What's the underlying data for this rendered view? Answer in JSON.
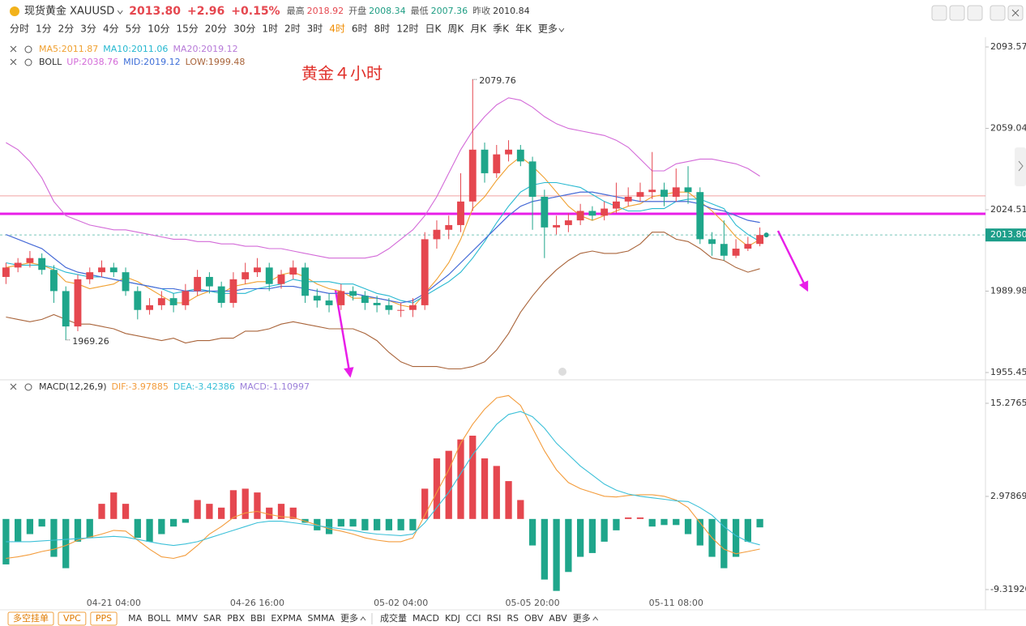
{
  "header": {
    "symbol": "现货黄金 XAUUSD",
    "price": "2013.80",
    "change": "+2.96",
    "change_pct": "+0.15%",
    "stats": [
      {
        "label": "最高",
        "value": "2018.92",
        "color": "#e5474f"
      },
      {
        "label": "开盘",
        "value": "2008.34",
        "color": "#1f9e84"
      },
      {
        "label": "最低",
        "value": "2007.36",
        "color": "#1f9e84"
      },
      {
        "label": "昨收",
        "value": "2010.84",
        "color": "#333333"
      }
    ]
  },
  "timeframes": {
    "items": [
      "分时",
      "1分",
      "2分",
      "3分",
      "4分",
      "5分",
      "10分",
      "15分",
      "20分",
      "30分",
      "1时",
      "2时",
      "3时",
      "4时",
      "6时",
      "8时",
      "12时",
      "日K",
      "周K",
      "月K",
      "季K",
      "年K",
      "更多"
    ],
    "active": "4时"
  },
  "toolbar": {
    "buttons": [
      "多空挂单",
      "VPC",
      "PPS"
    ],
    "main_indicators": [
      "MA",
      "BOLL",
      "MMV",
      "SAR",
      "PBX",
      "BBI",
      "EXPMA",
      "SMMA",
      "更多"
    ],
    "sub_indicators": [
      "成交量",
      "MACD",
      "KDJ",
      "CCI",
      "RSI",
      "RS",
      "OBV",
      "ABV",
      "更多"
    ]
  },
  "chart_data": [
    {
      "type": "candlestick",
      "annotation": "黄金４小时",
      "boll_label": "BOLL",
      "categories": [
        null,
        null,
        null,
        null,
        null,
        null,
        null,
        null,
        null,
        "04-21 04:00",
        null,
        null,
        null,
        null,
        null,
        null,
        null,
        null,
        null,
        null,
        null,
        "04-26 16:00",
        null,
        null,
        null,
        null,
        null,
        null,
        null,
        null,
        null,
        null,
        null,
        "05-02 04:00",
        null,
        null,
        null,
        null,
        null,
        null,
        null,
        null,
        null,
        null,
        "05-05 20:00",
        null,
        null,
        null,
        null,
        null,
        null,
        null,
        null,
        null,
        null,
        null,
        "05-11 08:00",
        null,
        null,
        null,
        null,
        null,
        null,
        null
      ],
      "open": [
        1996,
        2000,
        2002,
        2004,
        1999,
        1990,
        1975,
        1995,
        1998,
        2000,
        1998,
        1990,
        1982,
        1984,
        1987,
        1984,
        1990,
        1996,
        1992,
        1985,
        1995,
        1998,
        2000,
        1993,
        1997,
        2000,
        1988,
        1986,
        1984,
        1990,
        1988,
        1985,
        1984,
        1982,
        1982,
        1984,
        2012,
        2016,
        2018,
        2028,
        2050,
        2040,
        2048,
        2050,
        2045,
        2030,
        2017,
        2018,
        2020,
        2024,
        2022,
        2025,
        2028,
        2030,
        2032,
        2033,
        2030,
        2034,
        2032,
        2012,
        2010,
        2005,
        2008,
        2010
      ],
      "high": [
        2002,
        2004,
        2007,
        2006,
        2001,
        1992,
        1997,
        2000,
        2003,
        2002,
        2000,
        1992,
        1987,
        1990,
        1989,
        1993,
        1999,
        1998,
        1994,
        1998,
        2002,
        2004,
        2002,
        1999,
        2003,
        2002,
        1991,
        1989,
        1993,
        1992,
        1990,
        1988,
        1987,
        1985,
        1987,
        2015,
        2020,
        2022,
        2040,
        2079.76,
        2053,
        2052,
        2054,
        2052,
        2047,
        2033,
        2022,
        2023,
        2027,
        2026,
        2028,
        2036,
        2034,
        2036,
        2049,
        2036,
        2042,
        2043,
        2034,
        2015,
        2020,
        2012,
        2013,
        2017
      ],
      "low": [
        1993,
        1998,
        2000,
        1997,
        1985,
        1969.26,
        1973,
        1993,
        1996,
        1996,
        1988,
        1978,
        1980,
        1982,
        1981,
        1982,
        1988,
        1989,
        1983,
        1983,
        1993,
        1996,
        1990,
        1991,
        1995,
        1985,
        1983,
        1981,
        1982,
        1986,
        1982,
        1981,
        1980,
        1979,
        1979,
        1982,
        2008,
        2012,
        2015,
        2024,
        2036,
        2038,
        2045,
        2043,
        2016,
        2004,
        2014,
        2015,
        2018,
        2020,
        2020,
        2023,
        2026,
        2028,
        2029,
        2026,
        2028,
        2027,
        2010,
        2005,
        2003,
        2004,
        2007,
        2009
      ],
      "close": [
        2000,
        2002,
        2004,
        1999,
        1990,
        1975,
        1995,
        1998,
        2000,
        1998,
        1990,
        1982,
        1984,
        1987,
        1984,
        1990,
        1996,
        1992,
        1985,
        1995,
        1998,
        2000,
        1993,
        1997,
        2000,
        1988,
        1986,
        1984,
        1990,
        1988,
        1985,
        1984,
        1982,
        1982,
        1984,
        2012,
        2016,
        2018,
        2028,
        2050,
        2040,
        2048,
        2050,
        2045,
        2030,
        2017,
        2018,
        2020,
        2024,
        2022,
        2025,
        2028,
        2030,
        2032,
        2033,
        2030,
        2034,
        2032,
        2012,
        2010,
        2005,
        2008,
        2010,
        2013.8
      ],
      "up_color": "#e5474f",
      "down_color": "#1fa68b",
      "series": [
        {
          "name": "MA5:2011.87",
          "legend_row": 1,
          "color": "#f0a030",
          "values": [
            2000,
            2001,
            2002,
            2001,
            1999,
            1994,
            1993,
            1991,
            1992,
            1993,
            1996,
            1994,
            1991,
            1988,
            1985,
            1985,
            1988,
            1990,
            1989,
            1992,
            1993,
            1994,
            1994,
            1997,
            1998,
            1996,
            1993,
            1991,
            1990,
            1987,
            1987,
            1987,
            1986,
            1984,
            1983,
            1989,
            1995,
            2002,
            2012,
            2025,
            2030,
            2037,
            2043,
            2047,
            2043,
            2038,
            2032,
            2026,
            2022,
            2020,
            2022,
            2024,
            2026,
            2027,
            2030,
            2031,
            2032,
            2032,
            2028,
            2024,
            2019,
            2013,
            2009,
            2011.87
          ]
        },
        {
          "name": "MA10:2011.06",
          "legend_row": 1,
          "color": "#26b8d0",
          "values": [
            2002,
            2001,
            2001,
            2001,
            2000,
            1998,
            1997,
            1996,
            1996,
            1995,
            1994,
            1993,
            1992,
            1991,
            1989,
            1990,
            1991,
            1990,
            1989,
            1989,
            1989,
            1991,
            1992,
            1993,
            1995,
            1994,
            1994,
            1994,
            1993,
            1993,
            1991,
            1989,
            1988,
            1986,
            1985,
            1988,
            1991,
            1994,
            1998,
            2004,
            2011,
            2019,
            2026,
            2032,
            2035,
            2036,
            2036,
            2035,
            2034,
            2031,
            2028,
            2026,
            2024,
            2024,
            2025,
            2025,
            2028,
            2029,
            2029,
            2027,
            2025,
            2018,
            2014,
            2011.06
          ]
        },
        {
          "name": "MA20:2019.12",
          "legend_row": 1,
          "color": "#b77ad8",
          "values": [
            2014,
            2012,
            2010,
            2008,
            2004,
            2000,
            1998,
            1997,
            1996,
            1995,
            1994,
            1993,
            1992,
            1991,
            1991,
            1990,
            1990,
            1990,
            1990,
            1990,
            1991,
            1991,
            1991,
            1992,
            1992,
            1991,
            1990,
            1989,
            1989,
            1989,
            1988,
            1987,
            1986,
            1985,
            1986,
            1989,
            1993,
            1997,
            2002,
            2007,
            2012,
            2017,
            2022,
            2026,
            2028,
            2029,
            2030,
            2031,
            2032,
            2032,
            2031,
            2030,
            2029,
            2028,
            2028,
            2028,
            2028,
            2028,
            2027,
            2025,
            2024,
            2022,
            2020,
            2019.12
          ]
        },
        {
          "name": "UP:2038.76",
          "legend_row": 2,
          "color": "#d36ad8",
          "values": [
            2053,
            2050,
            2045,
            2038,
            2028,
            2022,
            2020,
            2018,
            2017,
            2016,
            2016,
            2015,
            2014,
            2013,
            2012,
            2012,
            2011,
            2011,
            2010,
            2010,
            2009,
            2009,
            2008,
            2008,
            2007,
            2006,
            2005,
            2004,
            2004,
            2004,
            2004,
            2005,
            2008,
            2012,
            2016,
            2022,
            2030,
            2040,
            2050,
            2058,
            2064,
            2069,
            2072,
            2071,
            2068,
            2064,
            2061,
            2059,
            2058,
            2057,
            2056,
            2054,
            2051,
            2046,
            2041,
            2041,
            2044,
            2045,
            2046,
            2046,
            2045,
            2044,
            2042,
            2038.76
          ]
        },
        {
          "name": "MID:2019.12",
          "legend_row": 2,
          "color": "#3f6fd8",
          "values": [
            2014,
            2012,
            2010,
            2008,
            2004,
            2000,
            1998,
            1997,
            1996,
            1995,
            1994,
            1993,
            1992,
            1991,
            1991,
            1990,
            1990,
            1990,
            1990,
            1990,
            1991,
            1991,
            1991,
            1992,
            1992,
            1991,
            1990,
            1989,
            1989,
            1989,
            1988,
            1987,
            1986,
            1985,
            1986,
            1989,
            1993,
            1997,
            2002,
            2007,
            2012,
            2017,
            2022,
            2026,
            2028,
            2029,
            2030,
            2031,
            2032,
            2032,
            2031,
            2030,
            2029,
            2028,
            2028,
            2028,
            2028,
            2028,
            2027,
            2025,
            2024,
            2022,
            2020,
            2019.12
          ]
        },
        {
          "name": "LOW:1999.48",
          "legend_row": 2,
          "color": "#a9643a",
          "values": [
            1979,
            1978,
            1977,
            1978,
            1980,
            1978,
            1976,
            1976,
            1975,
            1974,
            1972,
            1971,
            1970,
            1969,
            1970,
            1968,
            1969,
            1969,
            1970,
            1970,
            1973,
            1973,
            1974,
            1976,
            1977,
            1976,
            1975,
            1974,
            1974,
            1974,
            1972,
            1969,
            1964,
            1960,
            1958,
            1958,
            1958,
            1957,
            1957,
            1958,
            1960,
            1965,
            1972,
            1981,
            1988,
            1994,
            1999,
            2003,
            2006,
            2007,
            2006,
            2006,
            2007,
            2010,
            2015,
            2015,
            2012,
            2011,
            2008,
            2004,
            2003,
            2000,
            1998,
            1999.48
          ]
        }
      ],
      "ylim": [
        1952.7,
        2097.0
      ],
      "yticks": [
        2093.57,
        2059.04,
        2024.51,
        1989.98,
        1955.45
      ],
      "last_price": {
        "value": 2013.8,
        "label": "2013.80"
      },
      "last_price_color": "#1d9e8a",
      "levels": [
        {
          "value": 2022.8,
          "color": "#e81ee8",
          "line_width": 3
        },
        {
          "value": 2030.4,
          "color": "#f0a0a0",
          "line_width": 1
        }
      ]
    },
    {
      "type": "combo",
      "title": "MACD(12,26,9)",
      "ylim": [
        -11.14,
        17.2
      ],
      "yticks": [
        15.27659,
        2.97869,
        {
          "value": -9.3192,
          "label": "-9.31920"
        }
      ],
      "series": [
        {
          "name": "DIF:-3.97885",
          "type": "line",
          "color": "#f39c3c",
          "values": [
            -5.2,
            -5,
            -4.7,
            -4.3,
            -4,
            -3.5,
            -2.8,
            -2.4,
            -2,
            -1.5,
            -1.6,
            -2.8,
            -4,
            -5,
            -5.2,
            -4.8,
            -3.5,
            -2,
            -1,
            0.2,
            0.8,
            1,
            0.6,
            0.3,
            0.2,
            -0.3,
            -0.8,
            -1.3,
            -1.6,
            -2,
            -2.5,
            -2.8,
            -3,
            -3,
            -2.5,
            0.5,
            3.5,
            6.5,
            10,
            12.5,
            14.5,
            16,
            16.3,
            15,
            12,
            9,
            6.5,
            4.8,
            4,
            3.5,
            3,
            2.9,
            3.1,
            3.2,
            3.2,
            3,
            2.5,
            1.5,
            -0.5,
            -2.5,
            -4,
            -4.6,
            -4.3,
            -3.97885
          ]
        },
        {
          "name": "DEA:-3.42386",
          "type": "line",
          "color": "#3cc0d8",
          "values": [
            -3,
            -3,
            -3,
            -2.9,
            -2.8,
            -2.7,
            -2.6,
            -2.5,
            -2.4,
            -2.3,
            -2.4,
            -2.7,
            -3,
            -3.3,
            -3.5,
            -3.3,
            -3,
            -2.5,
            -2,
            -1.5,
            -1,
            -0.5,
            -0.3,
            -0.3,
            -0.5,
            -0.7,
            -0.9,
            -1.1,
            -1.3,
            -1.5,
            -1.8,
            -2,
            -2.1,
            -2.2,
            -2,
            -0.5,
            1.5,
            3.5,
            6,
            8.5,
            10.5,
            12.5,
            13.8,
            14.2,
            13.5,
            12,
            10,
            8.5,
            7,
            5.8,
            4.6,
            3.8,
            3.3,
            3,
            2.8,
            2.6,
            2.4,
            2.3,
            1.5,
            0.5,
            -1,
            -2.2,
            -3,
            -3.42386
          ]
        },
        {
          "name": "MACD:-1.10997",
          "type": "bar",
          "color": "#e5474f",
          "negative_color": "#1fa68b",
          "legend_color": "#9b7fd9",
          "values": [
            -6,
            -3,
            -2,
            -1,
            -5,
            -6.5,
            -3,
            -2.5,
            2,
            3.5,
            2,
            -2.5,
            -3,
            -2,
            -1,
            -0.5,
            2.5,
            2,
            1.5,
            3.8,
            4,
            3.5,
            1.5,
            2,
            1.5,
            -0.5,
            -1.5,
            -2,
            -1,
            -1,
            -1.5,
            -1.5,
            -1.5,
            -1.5,
            -1.5,
            4,
            8,
            9,
            10.5,
            11,
            8,
            7,
            5,
            2.5,
            -3.5,
            -8,
            -9.5,
            -7,
            -5,
            -4.5,
            -3,
            -1.5,
            0.2,
            0.2,
            -1,
            -0.8,
            -0.8,
            -2,
            -3.5,
            -5,
            -6.5,
            -5,
            -3,
            -1.10997
          ]
        }
      ]
    }
  ]
}
